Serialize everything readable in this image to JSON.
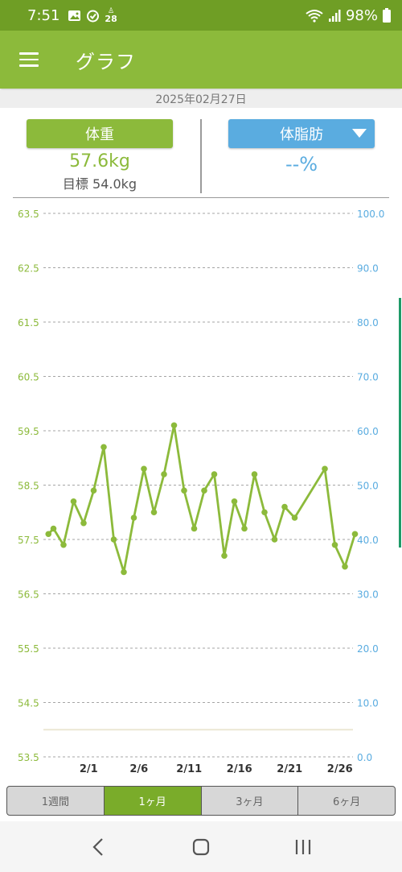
{
  "status_bar": {
    "time": "7:51",
    "notif_badge": "28",
    "battery": "98%",
    "icons": [
      "image-icon",
      "alarm-icon",
      "step-badge-icon",
      "wifi-icon",
      "signal-icon",
      "battery-icon"
    ]
  },
  "app_bar": {
    "title": "グラフ",
    "menu_icon": "hamburger-menu-icon"
  },
  "date": "2025年02月27日",
  "summary": {
    "weight_button": "体重",
    "weight_value": "57.6kg",
    "goal": "目標 54.0kg",
    "fat_button": "体脂肪",
    "fat_value": "--%"
  },
  "colors": {
    "primary_green": "#8cba3b",
    "status_green": "#6f9e25",
    "fat_blue": "#5aace0",
    "active_tab": "#7aac2a",
    "goal_line": "#ece7d4"
  },
  "chart_data": {
    "type": "line",
    "title": "",
    "xlabel": "",
    "ylabel": "",
    "left_axis": {
      "ticks": [
        "63.5",
        "62.5",
        "61.5",
        "60.5",
        "59.5",
        "58.5",
        "57.5",
        "56.5",
        "55.5",
        "54.5",
        "53.5"
      ],
      "ylim": [
        53.5,
        63.5
      ],
      "color": "#8cba3b"
    },
    "right_axis": {
      "ticks": [
        "100.0",
        "90.0",
        "80.0",
        "70.0",
        "60.0",
        "50.0",
        "40.0",
        "30.0",
        "20.0",
        "10.0",
        "0.0"
      ],
      "ylim": [
        0,
        100
      ],
      "color": "#5aace0"
    },
    "x_ticks": [
      {
        "label": "2/1",
        "day": 1
      },
      {
        "label": "2/6",
        "day": 6
      },
      {
        "label": "2/11",
        "day": 11
      },
      {
        "label": "2/16",
        "day": 16
      },
      {
        "label": "2/21",
        "day": 21
      },
      {
        "label": "2/26",
        "day": 26
      }
    ],
    "x_range_days": [
      -3.5,
      27.3
    ],
    "goal_weight": 54.0,
    "grid": true,
    "series": [
      {
        "axis": "left",
        "color": "#8cba3b",
        "points": [
          [
            -3.0,
            57.6
          ],
          [
            -2.5,
            57.7
          ],
          [
            -1.5,
            57.4
          ],
          [
            -0.5,
            58.2
          ],
          [
            0.5,
            57.8
          ],
          [
            1.5,
            58.4
          ],
          [
            2.5,
            59.2
          ],
          [
            3.5,
            57.5
          ],
          [
            4.5,
            56.9
          ],
          [
            5.5,
            57.9
          ],
          [
            6.5,
            58.8
          ],
          [
            7.5,
            58.0
          ],
          [
            8.5,
            58.7
          ],
          [
            9.5,
            59.6
          ],
          [
            10.5,
            58.4
          ],
          [
            11.5,
            57.7
          ],
          [
            12.5,
            58.4
          ],
          [
            13.5,
            58.7
          ],
          [
            14.5,
            57.2
          ],
          [
            15.5,
            58.2
          ],
          [
            16.5,
            57.7
          ],
          [
            17.5,
            58.7
          ],
          [
            18.5,
            58.0
          ],
          [
            19.5,
            57.5
          ],
          [
            20.5,
            58.1
          ],
          [
            21.5,
            57.9
          ],
          [
            24.5,
            58.8
          ],
          [
            25.5,
            57.4
          ],
          [
            26.5,
            57.0
          ],
          [
            27.5,
            57.6
          ]
        ]
      }
    ]
  },
  "tabs": [
    {
      "label": "1週間",
      "active": false
    },
    {
      "label": "1ヶ月",
      "active": true
    },
    {
      "label": "3ヶ月",
      "active": false
    },
    {
      "label": "6ヶ月",
      "active": false
    }
  ],
  "nav": [
    "back-icon",
    "home-icon",
    "recents-icon"
  ]
}
